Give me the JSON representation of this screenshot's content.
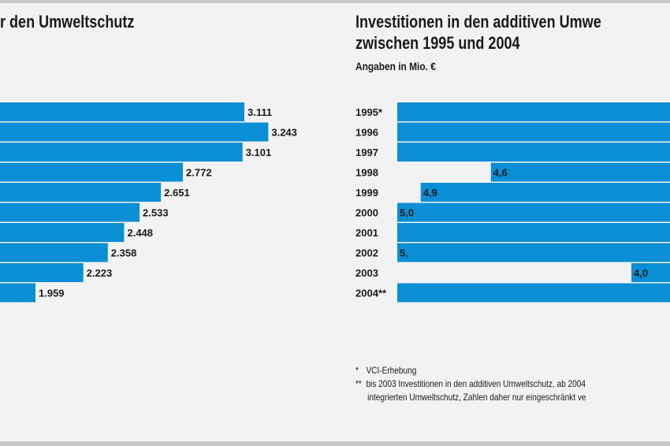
{
  "chart_data": [
    {
      "type": "bar",
      "orientation": "horizontal",
      "title": "r den Umweltschutz",
      "values": [
        3111,
        3243,
        3101,
        2772,
        2651,
        2533,
        2448,
        2358,
        2223,
        1959
      ],
      "value_labels": [
        "3.111",
        "3.243",
        "3.101",
        "2.772",
        "2.651",
        "2.533",
        "2.448",
        "2.358",
        "2.223",
        "1.959"
      ]
    },
    {
      "type": "bar",
      "orientation": "horizontal",
      "title_lines": [
        "Investitionen in den additiven Umwe",
        "zwischen 1995 und 2004"
      ],
      "subtitle": "Angaben in Mio. €",
      "categories": [
        "1995*",
        "1996",
        "1997",
        "1998",
        "1999",
        "2000",
        "2001",
        "2002",
        "2003",
        "2004**"
      ],
      "values": [
        null,
        null,
        null,
        4.6,
        4.9,
        5.0,
        null,
        5.0,
        4.0,
        null
      ],
      "value_labels": [
        "",
        "",
        "",
        "4,6",
        "4,9",
        "5,0",
        "",
        "5,",
        "4,0",
        ""
      ],
      "footnotes": [
        {
          "mark": "*",
          "text": "VCI-Erhebung"
        },
        {
          "mark": "**",
          "text": "bis 2003 Investitionen in den additiven Umweltschutz, ab 2004"
        },
        {
          "mark": "",
          "text": "integrierten Umweltschutz, Zahlen daher nur eingeschränkt ve"
        }
      ]
    }
  ]
}
